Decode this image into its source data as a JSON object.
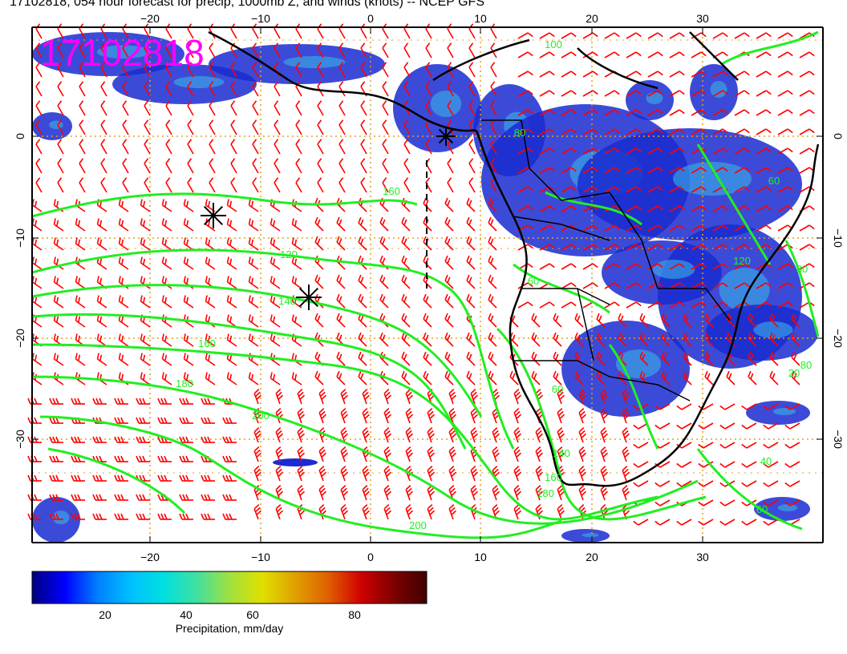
{
  "title": "17102818, 054 hour forecast for precip, 1000mb Z, and winds (knots) -- NCEP GFS",
  "stamp": "17102818",
  "x_ticks": [
    "−20",
    "−10",
    "0",
    "10",
    "20",
    "30"
  ],
  "y_ticks": [
    "0",
    "−10",
    "−20",
    "−30"
  ],
  "contour_labels": [
    "160",
    "120",
    "140",
    "160",
    "180",
    "200",
    "200",
    "60",
    "80",
    "100",
    "120",
    "140",
    "160",
    "180",
    "60",
    "60",
    "80",
    "80",
    "20",
    "40",
    "60"
  ],
  "colorbar": {
    "ticks": [
      "20",
      "40",
      "60",
      "80"
    ],
    "title": "Precipitation, mm/day",
    "colors": [
      "#000080",
      "#0000ff",
      "#0080ff",
      "#00c0ff",
      "#00e0e0",
      "#40e0a0",
      "#a0e040",
      "#e0e000",
      "#e0a000",
      "#e06000",
      "#d00000",
      "#800000",
      "#400000"
    ]
  },
  "colors": {
    "precip_blue": "#1a2bd0",
    "contour": "#22ee22",
    "wind": "#ff0000",
    "coast": "#000000",
    "grid": "#e0a020",
    "stamp": "#ff00ff"
  }
}
